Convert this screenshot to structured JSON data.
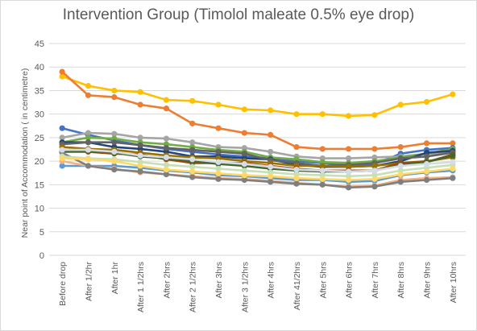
{
  "chart_data": {
    "type": "line",
    "title": "Intervention Group (Timolol maleate 0.5% eye drop)",
    "xlabel": "",
    "ylabel": "Near point of Accommodation ( in centimetre)",
    "ylim": [
      0,
      45
    ],
    "yticks": [
      0,
      5,
      10,
      15,
      20,
      25,
      30,
      35,
      40,
      45
    ],
    "grid": true,
    "legend": "none",
    "categories": [
      "Before drop",
      "After 1/2hr",
      "After 1hr",
      "After 1 1/2hrs",
      "After 2hrs",
      "After 2 1/2hrs",
      "After 3hrs",
      "After 3 1/2hrs",
      "After 4hrs",
      "After 41/2hrs",
      "After 5hrs",
      "After 6hrs",
      "After 7hrs",
      "After 8hrs",
      "After 9hrs",
      "After 10hrs"
    ],
    "series": [
      {
        "color": "#FFC000",
        "values": [
          38,
          36,
          35,
          34.7,
          33,
          32.8,
          32,
          31,
          30.8,
          30,
          30,
          29.6,
          29.8,
          32,
          32.6,
          34.2
        ]
      },
      {
        "color": "#ED7D31",
        "values": [
          39,
          34,
          33.6,
          32,
          31.2,
          28,
          27,
          26,
          25.6,
          23,
          22.6,
          22.6,
          22.6,
          23,
          23.8,
          23.8
        ]
      },
      {
        "color": "#4472C4",
        "values": [
          27,
          25.6,
          24.4,
          23.4,
          22.6,
          22,
          21.4,
          21,
          20.6,
          20,
          19.6,
          19.2,
          19.4,
          21.6,
          22.4,
          22.8
        ]
      },
      {
        "color": "#A5A5A5",
        "values": [
          25,
          26,
          25.8,
          25,
          24.8,
          24,
          23,
          22.8,
          22,
          21,
          20.6,
          20.6,
          20.8,
          21,
          21.6,
          21.8
        ]
      },
      {
        "color": "#70AD47",
        "values": [
          24,
          25,
          24.8,
          24,
          23.6,
          23,
          22.4,
          22,
          20.8,
          20.4,
          19.8,
          19.6,
          20,
          20.8,
          21.6,
          22.6
        ]
      },
      {
        "color": "#264478",
        "values": [
          24,
          24,
          23,
          22.6,
          22,
          21,
          21,
          20.6,
          20.4,
          19.2,
          18.8,
          18.8,
          19,
          20,
          21.8,
          22.2
        ]
      },
      {
        "color": "#636363",
        "values": [
          23.6,
          24,
          24,
          23.4,
          22.8,
          22.4,
          22,
          21.6,
          20.2,
          19.6,
          19,
          19.2,
          19.6,
          20.6,
          21,
          21.8
        ]
      },
      {
        "color": "#997300",
        "values": [
          23,
          22.6,
          22.4,
          21.8,
          21.2,
          20.8,
          20.6,
          20,
          19.6,
          19,
          19,
          18.8,
          19,
          19.6,
          20,
          20.8
        ]
      },
      {
        "color": "#9E480E",
        "values": [
          22,
          22,
          21.6,
          21.4,
          20.4,
          19.6,
          19.6,
          19.6,
          19,
          18.4,
          18,
          18,
          18,
          19.6,
          19.8,
          21.4
        ]
      },
      {
        "color": "#43682B",
        "values": [
          22,
          22.2,
          21.8,
          21,
          20.6,
          20,
          19.4,
          19,
          18.4,
          18,
          17.8,
          17.8,
          18,
          19.2,
          19.8,
          21.2
        ]
      },
      {
        "color": "#5B9BD5",
        "values": [
          19,
          19,
          19,
          18.6,
          18,
          17.6,
          17,
          16.8,
          16.4,
          16,
          16,
          15.6,
          15.8,
          17,
          17.6,
          18
        ]
      },
      {
        "color": "#F4B183",
        "values": [
          20,
          19,
          18.4,
          17.6,
          17.2,
          16.8,
          16.4,
          16.2,
          15.8,
          15.4,
          15,
          14.6,
          14.8,
          16,
          16.4,
          16.6
        ]
      },
      {
        "color": "#7F7F7F",
        "values": [
          21.8,
          19,
          18.2,
          17.8,
          17.2,
          16.6,
          16.2,
          16,
          15.6,
          15.2,
          15,
          14.4,
          14.6,
          15.6,
          16,
          16.4
        ]
      },
      {
        "color": "#C5E0B4",
        "values": [
          21,
          20.6,
          20.4,
          19.8,
          19.2,
          18.8,
          18.4,
          18,
          17.6,
          17.2,
          17,
          16.8,
          17,
          18,
          18.6,
          19.2
        ]
      },
      {
        "color": "#FFD966",
        "values": [
          20.6,
          20.4,
          20,
          19,
          18.2,
          17.8,
          17.4,
          17,
          16.8,
          16.4,
          16.2,
          16,
          16.2,
          17.2,
          17.8,
          18.4
        ]
      },
      {
        "color": "#D6DCE5",
        "values": [
          22.4,
          22.4,
          22,
          21.2,
          20.8,
          20.4,
          19.8,
          19.4,
          18.8,
          18.2,
          18,
          17.8,
          18,
          19,
          19.4,
          19.8
        ]
      }
    ]
  }
}
